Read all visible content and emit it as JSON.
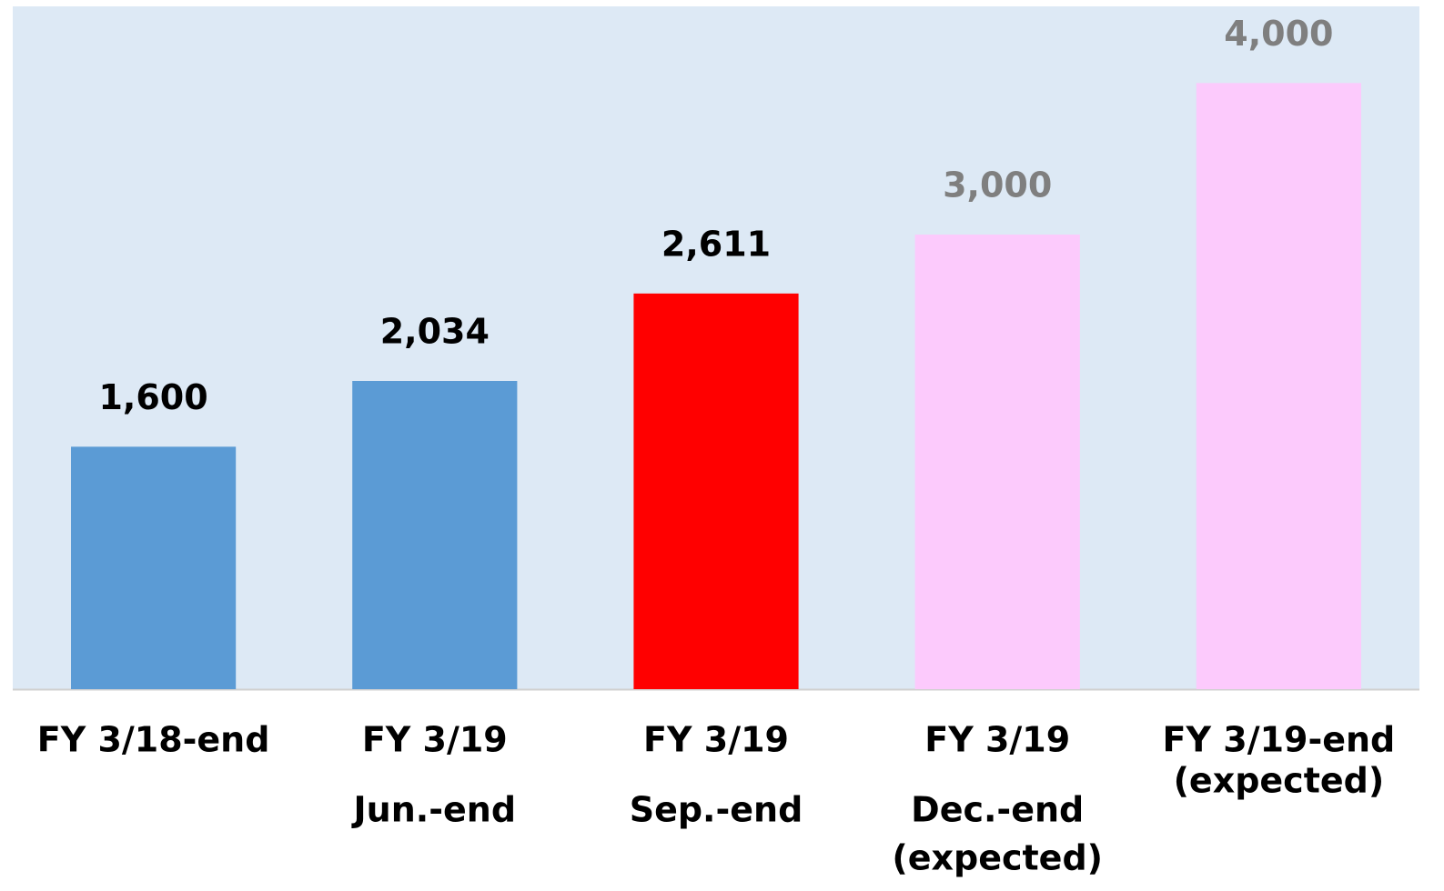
{
  "chart_data": {
    "type": "bar",
    "categories": [
      [
        "FY 3/18-end"
      ],
      [
        "FY 3/19",
        "Jun.-end"
      ],
      [
        "FY 3/19",
        "Sep.-end"
      ],
      [
        "FY 3/19",
        "Dec.-end",
        "(expected)"
      ],
      [
        "FY 3/19-end",
        "(expected)"
      ]
    ],
    "values": [
      1600,
      2034,
      2611,
      3000,
      4000
    ],
    "value_labels": [
      "1,600",
      "2,034",
      "2,611",
      "3,000",
      "4,000"
    ],
    "colors": [
      "#5b9bd5",
      "#5b9bd5",
      "#ff0000",
      "#fccafc",
      "#fccafc"
    ],
    "label_colors": [
      "#000000",
      "#000000",
      "#000000",
      "#7f7f7f",
      "#7f7f7f"
    ],
    "ylim": [
      0,
      4500
    ]
  }
}
